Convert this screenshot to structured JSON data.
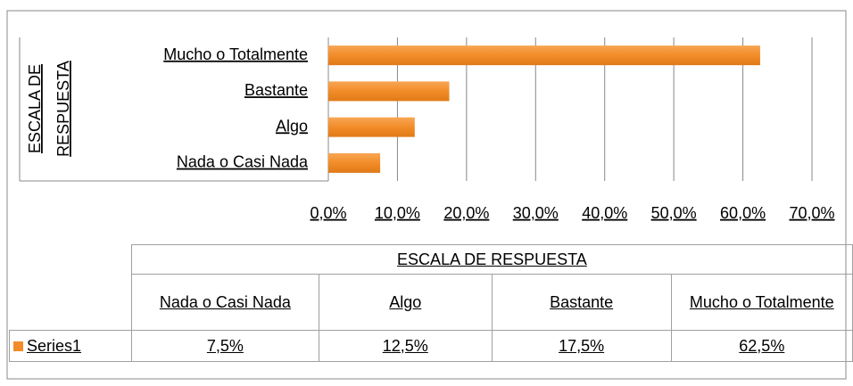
{
  "chart_data": {
    "type": "bar",
    "orientation": "horizontal",
    "axis_label": "ESCALA DE RESPUESTA",
    "categories": [
      "Nada o Casi Nada",
      "Algo",
      "Bastante",
      "Mucho o Totalmente"
    ],
    "series": [
      {
        "name": "Series1",
        "color": "#f28c28",
        "values": [
          7.5,
          12.5,
          17.5,
          62.5
        ],
        "value_labels": [
          "7,5%",
          "12,5%",
          "17,5%",
          "62,5%"
        ]
      }
    ],
    "xlim": [
      0,
      70
    ],
    "xticks": [
      {
        "value": 0,
        "label": "0,0%"
      },
      {
        "value": 10,
        "label": "10,0%"
      },
      {
        "value": 20,
        "label": "20,0%"
      },
      {
        "value": 30,
        "label": "30,0%"
      },
      {
        "value": 40,
        "label": "40,0%"
      },
      {
        "value": 50,
        "label": "50,0%"
      },
      {
        "value": 60,
        "label": "60,0%"
      },
      {
        "value": 70,
        "label": "70,0%"
      }
    ],
    "grid": true
  }
}
